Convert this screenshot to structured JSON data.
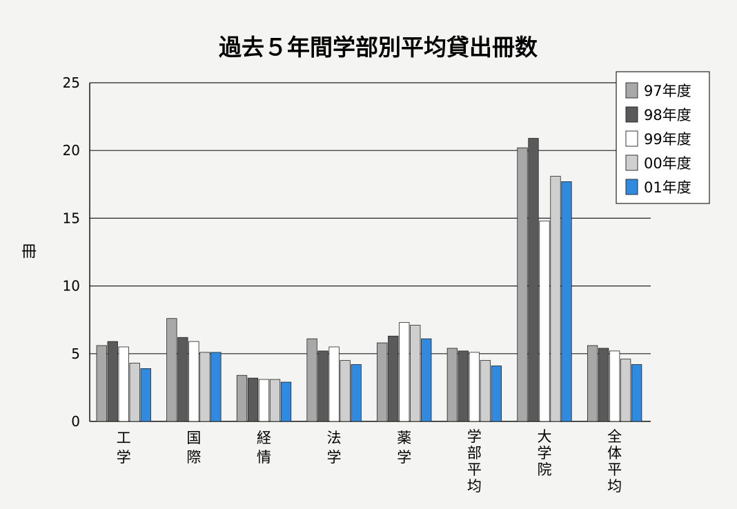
{
  "chart_data": {
    "type": "bar",
    "title": "過去５年間学部別平均貸出冊数",
    "ylabel": "冊",
    "xlabel": "",
    "ylim": [
      0,
      25
    ],
    "yticks": [
      "0",
      "5",
      "10",
      "15",
      "20",
      "25"
    ],
    "grid": true,
    "legend_position": "top-right",
    "categories": [
      "工学",
      "国際",
      "経情",
      "法学",
      "薬学",
      "学部平均",
      "大学院",
      "全体平均"
    ],
    "series": [
      {
        "name": "97年度",
        "color": "#a8a8a8",
        "values": [
          5.6,
          7.6,
          3.4,
          6.1,
          5.8,
          5.4,
          20.2,
          5.6
        ]
      },
      {
        "name": "98年度",
        "color": "#5a5a5a",
        "values": [
          5.9,
          6.2,
          3.2,
          5.2,
          6.3,
          5.2,
          20.9,
          5.4
        ]
      },
      {
        "name": "99年度",
        "color": "#ffffff",
        "values": [
          5.5,
          5.9,
          3.1,
          5.5,
          7.3,
          5.1,
          14.8,
          5.2
        ]
      },
      {
        "name": "00年度",
        "color": "#cfcfcf",
        "values": [
          4.3,
          5.1,
          3.1,
          4.5,
          7.1,
          4.5,
          18.1,
          4.6
        ]
      },
      {
        "name": "01年度",
        "color": "#2f8ae0",
        "values": [
          3.9,
          5.1,
          2.9,
          4.2,
          6.1,
          4.1,
          17.7,
          4.2
        ]
      }
    ]
  }
}
